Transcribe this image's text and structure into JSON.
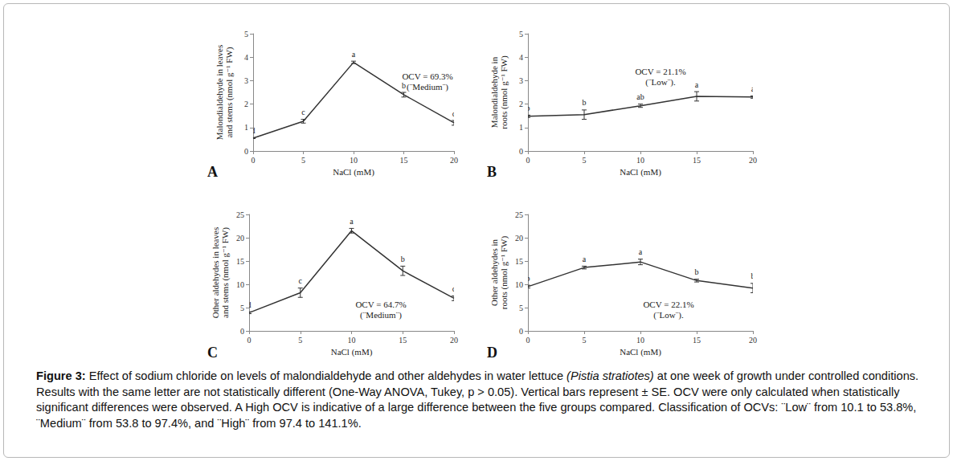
{
  "chart_data": [
    {
      "type": "line",
      "panel": "A",
      "xlabel": "NaCl (mM)",
      "ylabel": "Malondialdehyde in leaves and stems (nmol g⁻¹ FW)",
      "x": [
        0,
        5,
        10,
        15,
        20
      ],
      "values": [
        0.55,
        1.27,
        3.78,
        2.4,
        1.2
      ],
      "errors": [
        0.02,
        0.08,
        0.05,
        0.1,
        0.1
      ],
      "point_labels": [
        "d",
        "c",
        "a",
        "b",
        "c"
      ],
      "annotations": [
        "OCV = 69.3%",
        "(¨Medium¨)"
      ],
      "color": "#333333",
      "xlim": [
        0,
        20
      ],
      "xticks": [
        0,
        5,
        10,
        15,
        20
      ],
      "ylim": [
        0,
        5
      ],
      "yticks": [
        0,
        1,
        2,
        3,
        4,
        5
      ],
      "grid": false
    },
    {
      "type": "line",
      "panel": "B",
      "xlabel": "NaCl (mM)",
      "ylabel": "Malondialdehyde in roots (nmol g⁻¹ FW)",
      "x": [
        0,
        5,
        10,
        15,
        20
      ],
      "values": [
        1.48,
        1.55,
        1.93,
        2.33,
        2.3
      ],
      "errors": [
        0.05,
        0.2,
        0.07,
        0.2,
        0.05
      ],
      "point_labels": [
        "b",
        "b",
        "ab",
        "a",
        "a"
      ],
      "annotations": [
        "OCV = 21.1%",
        "(¨Low¨)."
      ],
      "color": "#333333",
      "xlim": [
        0,
        20
      ],
      "xticks": [
        0,
        5,
        10,
        15,
        20
      ],
      "ylim": [
        0,
        5
      ],
      "yticks": [
        0,
        1,
        2,
        3,
        4,
        5
      ],
      "grid": false
    },
    {
      "type": "line",
      "panel": "C",
      "xlabel": "NaCl (mM)",
      "ylabel": "Other aldehydes in leaves and stems (nmol g⁻¹ FW)",
      "x": [
        0,
        5,
        10,
        15,
        20
      ],
      "values": [
        3.9,
        8.2,
        21.5,
        12.9,
        7.0
      ],
      "errors": [
        0.2,
        1.0,
        0.5,
        1.0,
        0.5
      ],
      "point_labels": [
        "d",
        "c",
        "a",
        "b",
        "c"
      ],
      "annotations": [
        "OCV = 64.7%",
        "(¨Medium¨)"
      ],
      "color": "#333333",
      "xlim": [
        0,
        20
      ],
      "xticks": [
        0,
        5,
        10,
        15,
        20
      ],
      "ylim": [
        0,
        25
      ],
      "yticks": [
        0,
        5,
        10,
        15,
        20,
        25
      ],
      "grid": false
    },
    {
      "type": "line",
      "panel": "D",
      "xlabel": "NaCl (mM)",
      "ylabel": "Other aldehydes in roots (nmol g⁻¹ FW)",
      "x": [
        0,
        5,
        10,
        15,
        20
      ],
      "values": [
        9.5,
        13.6,
        14.8,
        10.8,
        9.2
      ],
      "errors": [
        0.3,
        0.3,
        0.6,
        0.3,
        1.0
      ],
      "point_labels": [
        "b",
        "a",
        "a",
        "b",
        "b"
      ],
      "annotations": [
        "OCV = 22.1%",
        "(¨Low¨)."
      ],
      "color": "#333333",
      "xlim": [
        0,
        20
      ],
      "xticks": [
        0,
        5,
        10,
        15,
        20
      ],
      "ylim": [
        0,
        25
      ],
      "yticks": [
        0,
        5,
        10,
        15,
        20,
        25
      ],
      "grid": false
    }
  ],
  "caption": [
    {
      "text": "Figure 3:",
      "style": "bold"
    },
    {
      "text": " Effect of sodium chloride on levels of malondialdehyde and other aldehydes in water lettuce ",
      "style": "normal"
    },
    {
      "text": "(Pistia stratiotes)",
      "style": "italic"
    },
    {
      "text": " at one week of growth under controlled conditions. Results with the same letter are not statistically different (One-Way ANOVA, Tukey, p > 0.05). Vertical bars represent ± SE. OCV were only calculated when statistically significant differences were observed. A High OCV is indicative of a large difference between the five groups compared. Classification of  OCVs: ¨Low¨ from 10.1 to 53.8%, ¨Medium¨ from 53.8 to 97.4%, and ¨High¨ from 97.4 to 141.1%.",
      "style": "normal"
    }
  ]
}
